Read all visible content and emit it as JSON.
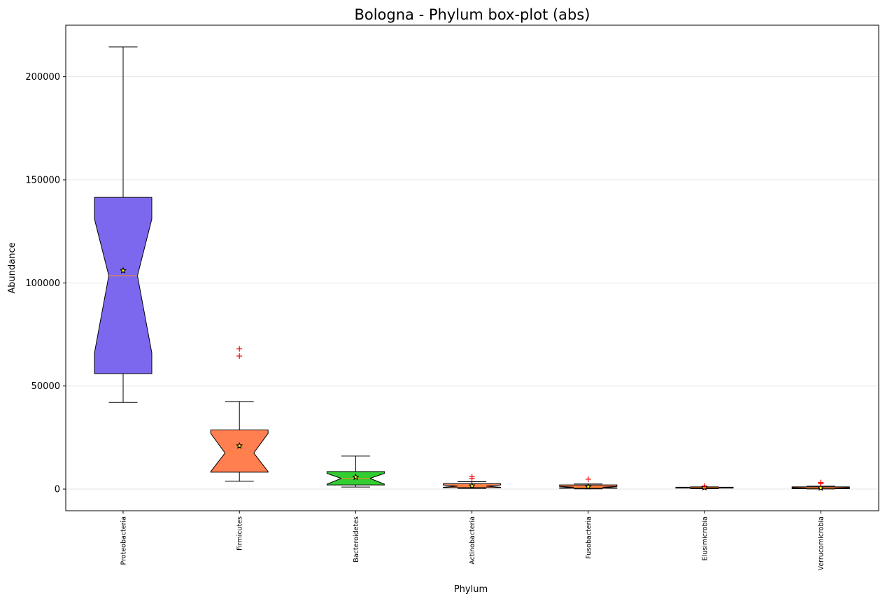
{
  "chart_data": {
    "type": "box",
    "title": "Bologna - Phylum box-plot (abs)",
    "xlabel": "Phylum",
    "ylabel": "Abundance",
    "ylim": [
      -10500,
      225000
    ],
    "yticks": [
      0,
      50000,
      100000,
      150000,
      200000
    ],
    "ytick_labels": [
      "0",
      "50000",
      "100000",
      "150000",
      "200000"
    ],
    "grid": "horizontal",
    "notched": true,
    "colors": {
      "median": "#ff8c1a",
      "outlier": "#ff0000",
      "grid": "#e6e6e6",
      "edge": "#000000"
    },
    "categories": [
      "Proteobacteria",
      "Firmicutes",
      "Bacteroidetes",
      "Actinobacteria",
      "Fusobacteria",
      "Elusimicrobia",
      "Verrucomicrobia"
    ],
    "boxes": [
      {
        "name": "Proteobacteria",
        "color": "#7b68ee",
        "whisker_low": 42000,
        "q1": 56000,
        "median": 103500,
        "q3": 141500,
        "whisker_high": 214500,
        "mean": 106000,
        "notch_low": 66000,
        "notch_high": 131000,
        "outliers": []
      },
      {
        "name": "Firmicutes",
        "color": "#ff7f50",
        "whisker_low": 3800,
        "q1": 8200,
        "median": 17500,
        "q3": 28700,
        "whisker_high": 42500,
        "mean": 21000,
        "notch_low": 8500,
        "notch_high": 27000,
        "outliers": [
          64500,
          68000
        ]
      },
      {
        "name": "Bacteroidetes",
        "color": "#32cd32",
        "whisker_low": 1000,
        "q1": 2000,
        "median": 5200,
        "q3": 8500,
        "whisker_high": 16000,
        "mean": 5800,
        "notch_low": 2400,
        "notch_high": 7600,
        "outliers": []
      },
      {
        "name": "Actinobacteria",
        "color": "#ff7f50",
        "whisker_low": 300,
        "q1": 700,
        "median": 1400,
        "q3": 2600,
        "whisker_high": 3600,
        "mean": 1600,
        "notch_low": 900,
        "notch_high": 2000,
        "outliers": [
          5200,
          6000
        ]
      },
      {
        "name": "Fusobacteria",
        "color": "#ff7f50",
        "whisker_low": 100,
        "q1": 400,
        "median": 900,
        "q3": 2000,
        "whisker_high": 2500,
        "mean": 1200,
        "notch_low": 600,
        "notch_high": 1300,
        "outliers": [
          4800
        ]
      },
      {
        "name": "Elusimicrobia",
        "color": "#ff7f50",
        "whisker_low": 200,
        "q1": 500,
        "median": 700,
        "q3": 900,
        "whisker_high": 1100,
        "mean": 750,
        "notch_low": 600,
        "notch_high": 800,
        "outliers": [
          1500
        ]
      },
      {
        "name": "Verrucomicrobia",
        "color": "#ff7f50",
        "whisker_low": 50,
        "q1": 200,
        "median": 500,
        "q3": 1100,
        "whisker_high": 1400,
        "mean": 600,
        "notch_low": 350,
        "notch_high": 700,
        "outliers": [
          2600,
          3200
        ]
      }
    ]
  }
}
